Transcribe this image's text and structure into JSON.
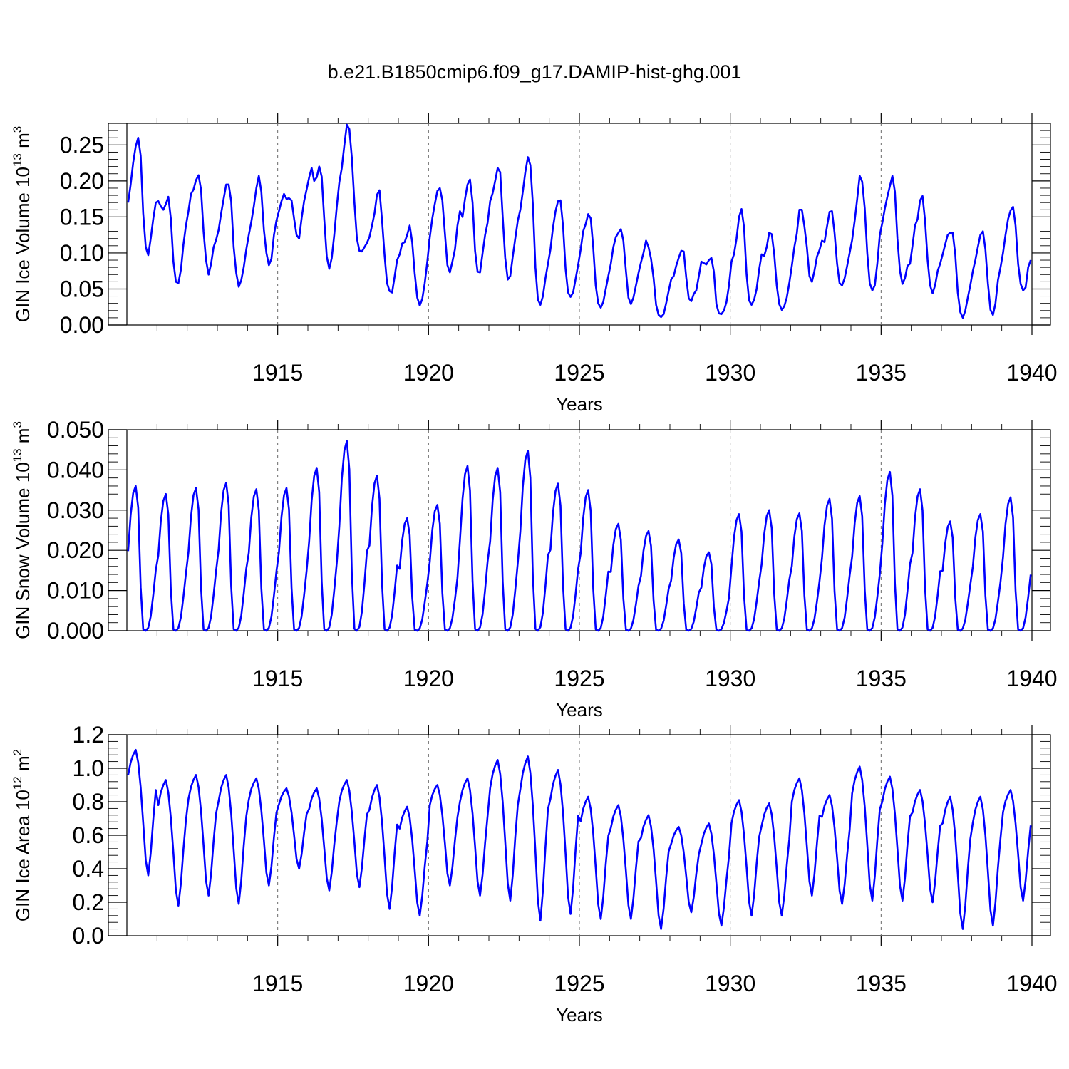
{
  "figure_title": "b.e21.B1850cmip6.f09_g17.DAMIP-hist-ghg.001",
  "colors": {
    "series": "#0000ff",
    "axes": "#000000",
    "grid": "#6a6a6a"
  },
  "chart_data": [
    {
      "type": "line",
      "name": "ice-volume",
      "title": "",
      "xlabel": "Years",
      "ylabel": "GIN Ice Volume 10",
      "ylabel_exp": "13",
      "ylabel_unit": "m",
      "ylabel_unit_exp": "3",
      "xlim": [
        1910.0,
        1940.0
      ],
      "ylim": [
        0.0,
        0.28
      ],
      "xticks": [
        1915,
        1920,
        1925,
        1930,
        1935,
        1940
      ],
      "xtick_labels": [
        "1915",
        "1920",
        "1925",
        "1930",
        "1935",
        "1940"
      ],
      "yticks": [
        0.0,
        0.05,
        0.1,
        0.15,
        0.2,
        0.25
      ],
      "ytick_labels": [
        "0.00",
        "0.05",
        "0.10",
        "0.15",
        "0.20",
        "0.25"
      ],
      "grid_x": true,
      "series": [
        {
          "name": "GIN Ice Volume",
          "x_start": 1910.042,
          "x_step": 0.08333,
          "values": [
            0.17,
            0.195,
            0.225,
            0.248,
            0.26,
            0.235,
            0.155,
            0.108,
            0.097,
            0.12,
            0.148,
            0.17,
            0.172,
            0.165,
            0.16,
            0.168,
            0.178,
            0.148,
            0.088,
            0.06,
            0.058,
            0.077,
            0.112,
            0.138,
            0.158,
            0.182,
            0.188,
            0.201,
            0.208,
            0.188,
            0.13,
            0.09,
            0.07,
            0.085,
            0.108,
            0.118,
            0.132,
            0.155,
            0.175,
            0.195,
            0.195,
            0.172,
            0.108,
            0.072,
            0.053,
            0.062,
            0.08,
            0.105,
            0.125,
            0.143,
            0.165,
            0.19,
            0.207,
            0.185,
            0.132,
            0.1,
            0.083,
            0.092,
            0.125,
            0.145,
            0.158,
            0.172,
            0.182,
            0.175,
            0.176,
            0.173,
            0.148,
            0.125,
            0.12,
            0.148,
            0.172,
            0.188,
            0.205,
            0.218,
            0.2,
            0.205,
            0.22,
            0.206,
            0.148,
            0.095,
            0.078,
            0.093,
            0.125,
            0.165,
            0.198,
            0.218,
            0.25,
            0.278,
            0.272,
            0.232,
            0.17,
            0.12,
            0.103,
            0.102,
            0.108,
            0.114,
            0.122,
            0.138,
            0.155,
            0.181,
            0.187,
            0.145,
            0.097,
            0.058,
            0.047,
            0.045,
            0.067,
            0.09,
            0.098,
            0.113,
            0.115,
            0.125,
            0.138,
            0.115,
            0.072,
            0.038,
            0.027,
            0.036,
            0.058,
            0.088,
            0.122,
            0.148,
            0.168,
            0.186,
            0.19,
            0.173,
            0.127,
            0.083,
            0.073,
            0.088,
            0.105,
            0.138,
            0.158,
            0.15,
            0.175,
            0.195,
            0.202,
            0.17,
            0.103,
            0.074,
            0.073,
            0.1,
            0.125,
            0.142,
            0.172,
            0.183,
            0.2,
            0.218,
            0.212,
            0.15,
            0.093,
            0.063,
            0.068,
            0.095,
            0.12,
            0.145,
            0.16,
            0.185,
            0.212,
            0.233,
            0.222,
            0.168,
            0.08,
            0.035,
            0.028,
            0.04,
            0.065,
            0.085,
            0.105,
            0.135,
            0.158,
            0.172,
            0.173,
            0.137,
            0.078,
            0.045,
            0.039,
            0.045,
            0.064,
            0.083,
            0.105,
            0.13,
            0.14,
            0.154,
            0.148,
            0.108,
            0.055,
            0.03,
            0.024,
            0.032,
            0.05,
            0.068,
            0.085,
            0.108,
            0.122,
            0.128,
            0.133,
            0.117,
            0.075,
            0.038,
            0.029,
            0.038,
            0.055,
            0.072,
            0.087,
            0.1,
            0.117,
            0.108,
            0.092,
            0.065,
            0.028,
            0.014,
            0.011,
            0.015,
            0.03,
            0.047,
            0.063,
            0.068,
            0.082,
            0.093,
            0.103,
            0.102,
            0.066,
            0.037,
            0.033,
            0.043,
            0.048,
            0.068,
            0.088,
            0.086,
            0.084,
            0.09,
            0.093,
            0.074,
            0.029,
            0.016,
            0.015,
            0.02,
            0.032,
            0.055,
            0.088,
            0.098,
            0.12,
            0.15,
            0.161,
            0.136,
            0.07,
            0.034,
            0.028,
            0.035,
            0.05,
            0.077,
            0.098,
            0.096,
            0.108,
            0.128,
            0.126,
            0.098,
            0.055,
            0.029,
            0.021,
            0.026,
            0.038,
            0.058,
            0.082,
            0.108,
            0.127,
            0.16,
            0.16,
            0.137,
            0.108,
            0.068,
            0.06,
            0.075,
            0.095,
            0.104,
            0.117,
            0.115,
            0.137,
            0.157,
            0.158,
            0.128,
            0.085,
            0.058,
            0.055,
            0.065,
            0.082,
            0.1,
            0.118,
            0.145,
            0.175,
            0.207,
            0.199,
            0.162,
            0.1,
            0.058,
            0.048,
            0.055,
            0.085,
            0.125,
            0.142,
            0.162,
            0.178,
            0.193,
            0.207,
            0.185,
            0.12,
            0.075,
            0.057,
            0.065,
            0.082,
            0.085,
            0.11,
            0.138,
            0.147,
            0.173,
            0.179,
            0.145,
            0.09,
            0.055,
            0.044,
            0.055,
            0.075,
            0.085,
            0.098,
            0.112,
            0.125,
            0.128,
            0.128,
            0.098,
            0.045,
            0.018,
            0.01,
            0.02,
            0.038,
            0.055,
            0.075,
            0.09,
            0.108,
            0.125,
            0.13,
            0.105,
            0.058,
            0.021,
            0.014,
            0.03,
            0.062,
            0.08,
            0.1,
            0.125,
            0.147,
            0.159,
            0.164,
            0.138,
            0.085,
            0.057,
            0.048,
            0.052,
            0.08,
            0.09
          ]
        }
      ]
    },
    {
      "type": "line",
      "name": "snow-volume",
      "title": "",
      "xlabel": "Years",
      "ylabel": "GIN Snow Volume 10",
      "ylabel_exp": "13",
      "ylabel_unit": "m",
      "ylabel_unit_exp": "3",
      "xlim": [
        1910.0,
        1940.0
      ],
      "ylim": [
        0.0,
        0.05
      ],
      "xticks": [
        1915,
        1920,
        1925,
        1930,
        1935,
        1940
      ],
      "xtick_labels": [
        "1915",
        "1920",
        "1925",
        "1930",
        "1935",
        "1940"
      ],
      "yticks": [
        0.0,
        0.01,
        0.02,
        0.03,
        0.04,
        0.05
      ],
      "ytick_labels": [
        "0.000",
        "0.010",
        "0.020",
        "0.030",
        "0.040",
        "0.050"
      ],
      "grid_x": true,
      "series": [
        {
          "name": "GIN Snow Volume",
          "x_start": 1910.042,
          "x_step": 0.08333,
          "peaks": [
            0.036,
            0.034,
            0.0355,
            0.0368,
            0.0352,
            0.0355,
            0.0405,
            0.0472,
            0.0386,
            0.028,
            0.0313,
            0.041,
            0.0405,
            0.0448,
            0.0366,
            0.035,
            0.0266,
            0.0248,
            0.0227,
            0.0195,
            0.029,
            0.03,
            0.0292,
            0.0328,
            0.0335,
            0.0395,
            0.0352,
            0.0272,
            0.029,
            0.0332
          ],
          "seasonal_shape": [
            0.55,
            0.8,
            0.95,
            1.0,
            0.85,
            0.3,
            0.01,
            0.0,
            0.02,
            0.1,
            0.25,
            0.42
          ]
        }
      ]
    },
    {
      "type": "line",
      "name": "ice-area",
      "title": "",
      "xlabel": "Years",
      "ylabel": "GIN Ice Area 10",
      "ylabel_exp": "12",
      "ylabel_unit": "m",
      "ylabel_unit_exp": "2",
      "xlim": [
        1910.0,
        1940.0
      ],
      "ylim": [
        0.0,
        1.2
      ],
      "xticks": [
        1915,
        1920,
        1925,
        1930,
        1935,
        1940
      ],
      "xtick_labels": [
        "1915",
        "1920",
        "1925",
        "1930",
        "1935",
        "1940"
      ],
      "yticks": [
        0.0,
        0.2,
        0.4,
        0.6,
        0.8,
        1.0,
        1.2
      ],
      "ytick_labels": [
        "0.0",
        "0.2",
        "0.4",
        "0.6",
        "0.8",
        "1.0",
        "1.2"
      ],
      "grid_x": true,
      "series": [
        {
          "name": "GIN Ice Area",
          "x_start": 1910.042,
          "x_step": 0.08333,
          "peaks": [
            1.11,
            0.93,
            0.96,
            0.96,
            0.94,
            0.88,
            0.88,
            0.93,
            0.9,
            0.77,
            0.9,
            0.94,
            1.05,
            1.07,
            0.99,
            0.83,
            0.78,
            0.72,
            0.65,
            0.67,
            0.81,
            0.79,
            0.94,
            0.84,
            1.01,
            0.95,
            0.87,
            0.83,
            0.83,
            0.87
          ],
          "troughs": [
            0.36,
            0.18,
            0.24,
            0.19,
            0.3,
            0.4,
            0.27,
            0.29,
            0.16,
            0.12,
            0.3,
            0.24,
            0.21,
            0.09,
            0.13,
            0.1,
            0.1,
            0.04,
            0.14,
            0.06,
            0.12,
            0.12,
            0.24,
            0.19,
            0.21,
            0.21,
            0.2,
            0.04,
            0.06,
            0.21
          ]
        }
      ]
    }
  ]
}
